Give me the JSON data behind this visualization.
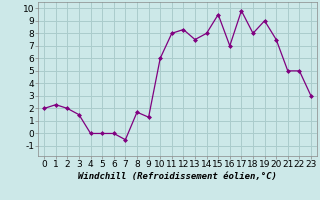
{
  "x": [
    0,
    1,
    2,
    3,
    4,
    5,
    6,
    7,
    8,
    9,
    10,
    11,
    12,
    13,
    14,
    15,
    16,
    17,
    18,
    19,
    20,
    21,
    22,
    23
  ],
  "y": [
    2,
    2.3,
    2,
    1.5,
    0,
    0,
    0,
    -0.5,
    1.7,
    1.3,
    6,
    8,
    8.3,
    7.5,
    8,
    9.5,
    7,
    9.8,
    8,
    9,
    7.5,
    5,
    5,
    3
  ],
  "line_color": "#800080",
  "marker_color": "#800080",
  "bg_color": "#cce8e8",
  "grid_color": "#aacccc",
  "xlabel": "Windchill (Refroidissement éolien,°C)",
  "xlim": [
    -0.5,
    23.5
  ],
  "ylim": [
    -1.8,
    10.5
  ],
  "yticks": [
    -1,
    0,
    1,
    2,
    3,
    4,
    5,
    6,
    7,
    8,
    9,
    10
  ],
  "xticks": [
    0,
    1,
    2,
    3,
    4,
    5,
    6,
    7,
    8,
    9,
    10,
    11,
    12,
    13,
    14,
    15,
    16,
    17,
    18,
    19,
    20,
    21,
    22,
    23
  ],
  "xlabel_fontsize": 6.5,
  "tick_fontsize": 6.5
}
